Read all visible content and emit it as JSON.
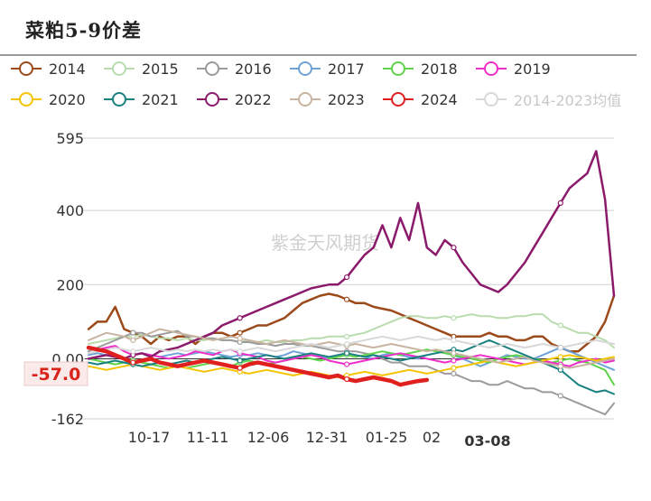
{
  "title": "菜粕5-9价差",
  "watermark": "紫金天风期货",
  "current_value_label": "-57.0",
  "current_date_label": "03-08",
  "chart_data": {
    "type": "line",
    "title": "菜粕5-9价差",
    "yticks": [
      595,
      400,
      200,
      0.0,
      -162
    ],
    "ytick_labels": [
      "595",
      "400",
      "200",
      "0.00",
      "-162"
    ],
    "ylim": [
      -162,
      595
    ],
    "xtick_labels": [
      "10-17",
      "11-11",
      "12-06",
      "12-31",
      "01-25",
      "02",
      "03-08"
    ],
    "x_count": 60,
    "highlight": {
      "series": "2024",
      "value": -57.0,
      "date": "03-08"
    },
    "series": [
      {
        "name": "2014",
        "color": "#9c4a1a",
        "width": 2.5,
        "values": [
          80,
          100,
          100,
          140,
          80,
          70,
          60,
          40,
          60,
          50,
          60,
          60,
          40,
          60,
          70,
          70,
          60,
          70,
          80,
          90,
          90,
          100,
          110,
          130,
          150,
          160,
          170,
          175,
          170,
          160,
          150,
          150,
          140,
          135,
          130,
          120,
          110,
          100,
          90,
          80,
          70,
          60,
          60,
          60,
          60,
          70,
          60,
          60,
          50,
          50,
          60,
          60,
          40,
          30,
          20,
          20,
          40,
          60,
          100,
          170
        ]
      },
      {
        "name": "2015",
        "color": "#b9dcae",
        "width": 2,
        "values": [
          40,
          45,
          50,
          55,
          60,
          60,
          65,
          60,
          55,
          55,
          50,
          55,
          50,
          50,
          55,
          50,
          50,
          45,
          50,
          45,
          50,
          45,
          45,
          50,
          50,
          55,
          55,
          60,
          60,
          60,
          65,
          70,
          80,
          90,
          100,
          110,
          115,
          115,
          110,
          110,
          115,
          110,
          115,
          120,
          115,
          115,
          110,
          110,
          115,
          115,
          120,
          120,
          100,
          90,
          80,
          70,
          70,
          60,
          50,
          30
        ]
      },
      {
        "name": "2016",
        "color": "#9b9b9b",
        "width": 2,
        "values": [
          20,
          30,
          40,
          50,
          60,
          70,
          70,
          60,
          65,
          70,
          75,
          60,
          60,
          55,
          55,
          50,
          50,
          45,
          45,
          40,
          40,
          35,
          40,
          40,
          35,
          35,
          30,
          25,
          20,
          20,
          20,
          15,
          10,
          0,
          -10,
          -10,
          -20,
          -20,
          -20,
          -30,
          -40,
          -40,
          -50,
          -60,
          -60,
          -70,
          -70,
          -60,
          -70,
          -80,
          -80,
          -90,
          -90,
          -100,
          -110,
          -120,
          -130,
          -140,
          -150,
          -120
        ]
      },
      {
        "name": "2017",
        "color": "#6fa3d8",
        "width": 2,
        "values": [
          10,
          15,
          10,
          5,
          0,
          10,
          15,
          10,
          5,
          10,
          15,
          10,
          15,
          20,
          15,
          10,
          5,
          10,
          10,
          15,
          10,
          5,
          10,
          20,
          15,
          10,
          5,
          0,
          10,
          15,
          10,
          5,
          0,
          10,
          15,
          10,
          5,
          0,
          10,
          15,
          20,
          10,
          0,
          -10,
          -20,
          -10,
          0,
          10,
          5,
          0,
          0,
          10,
          20,
          30,
          20,
          10,
          0,
          -10,
          -20,
          -30
        ]
      },
      {
        "name": "2018",
        "color": "#5fd34a",
        "width": 2,
        "values": [
          0,
          -5,
          -10,
          -15,
          -10,
          -5,
          -10,
          -15,
          -20,
          -25,
          -20,
          -25,
          -20,
          -15,
          -10,
          -15,
          -20,
          -10,
          -5,
          -10,
          -15,
          -10,
          -5,
          0,
          5,
          0,
          -5,
          0,
          5,
          10,
          5,
          10,
          15,
          20,
          15,
          10,
          15,
          20,
          25,
          20,
          15,
          10,
          5,
          0,
          -5,
          -10,
          0,
          5,
          10,
          5,
          0,
          -5,
          -10,
          -5,
          0,
          -5,
          -10,
          -20,
          -30,
          -70
        ]
      },
      {
        "name": "2019",
        "color": "#ee2ec8",
        "width": 2,
        "values": [
          30,
          25,
          30,
          35,
          20,
          10,
          15,
          10,
          5,
          0,
          5,
          10,
          20,
          15,
          10,
          20,
          25,
          15,
          10,
          5,
          -5,
          -10,
          -5,
          0,
          5,
          10,
          5,
          -5,
          -10,
          -15,
          -10,
          -5,
          0,
          5,
          10,
          15,
          10,
          5,
          0,
          -5,
          -10,
          -5,
          0,
          5,
          10,
          5,
          0,
          -5,
          -10,
          -15,
          -10,
          -5,
          -10,
          -15,
          -20,
          -10,
          -5,
          0,
          -10,
          -5
        ]
      },
      {
        "name": "2020",
        "color": "#f5c400",
        "width": 2,
        "values": [
          -20,
          -25,
          -30,
          -25,
          -20,
          -15,
          -20,
          -25,
          -30,
          -25,
          -20,
          -25,
          -30,
          -35,
          -30,
          -25,
          -30,
          -35,
          -40,
          -35,
          -30,
          -35,
          -40,
          -45,
          -40,
          -35,
          -40,
          -45,
          -50,
          -45,
          -40,
          -35,
          -40,
          -45,
          -40,
          -35,
          -30,
          -35,
          -40,
          -35,
          -30,
          -25,
          -20,
          -15,
          -10,
          -5,
          -10,
          -15,
          -20,
          -15,
          -10,
          -5,
          0,
          5,
          10,
          5,
          0,
          -5,
          0,
          5
        ]
      },
      {
        "name": "2021",
        "color": "#1a8080",
        "width": 2,
        "values": [
          -10,
          -15,
          -10,
          -5,
          -10,
          -15,
          -20,
          -15,
          -10,
          -15,
          -10,
          -5,
          -10,
          -5,
          0,
          5,
          0,
          -5,
          0,
          5,
          10,
          5,
          0,
          5,
          10,
          15,
          10,
          5,
          10,
          15,
          10,
          5,
          10,
          5,
          0,
          -5,
          0,
          5,
          10,
          15,
          20,
          25,
          20,
          30,
          40,
          50,
          40,
          30,
          20,
          10,
          0,
          -10,
          -20,
          -30,
          -50,
          -70,
          -80,
          -90,
          -85,
          -95
        ]
      },
      {
        "name": "2022",
        "color": "#8b1a6b",
        "width": 2.5,
        "values": [
          0,
          5,
          10,
          5,
          0,
          10,
          15,
          5,
          20,
          25,
          30,
          40,
          50,
          60,
          70,
          90,
          100,
          110,
          120,
          130,
          140,
          150,
          160,
          170,
          180,
          190,
          195,
          200,
          200,
          220,
          250,
          280,
          300,
          360,
          300,
          380,
          320,
          420,
          300,
          280,
          320,
          300,
          260,
          230,
          200,
          190,
          180,
          200,
          230,
          260,
          300,
          340,
          380,
          420,
          460,
          480,
          500,
          560,
          430,
          170
        ]
      },
      {
        "name": "2023",
        "color": "#c8b4a0",
        "width": 2,
        "values": [
          50,
          60,
          70,
          65,
          60,
          50,
          60,
          70,
          80,
          75,
          70,
          65,
          60,
          55,
          50,
          55,
          60,
          55,
          50,
          45,
          40,
          45,
          50,
          45,
          40,
          35,
          40,
          45,
          40,
          35,
          40,
          35,
          30,
          35,
          40,
          35,
          30,
          25,
          20,
          25,
          20,
          15,
          10,
          5,
          0,
          -5,
          -10,
          -5,
          0,
          5,
          -5,
          -10,
          -15,
          -20,
          -25,
          -20,
          -15,
          -10,
          -5,
          0
        ]
      },
      {
        "name": "2024",
        "color": "#e01f1f",
        "width": 4.5,
        "values": [
          30,
          25,
          20,
          10,
          0,
          -10,
          -5,
          0,
          -10,
          -15,
          -20,
          -15,
          -10,
          -5,
          -10,
          -15,
          -20,
          -25,
          -15,
          -10,
          -15,
          -20,
          -25,
          -30,
          -35,
          -40,
          -45,
          -50,
          -45,
          -55,
          -60,
          -55,
          -50,
          -55,
          -60,
          -70,
          -65,
          -60,
          -57
        ]
      },
      {
        "name": "2014-2023均值",
        "color": "#d8d8d8",
        "width": 2,
        "values": [
          15,
          20,
          25,
          30,
          25,
          20,
          25,
          30,
          25,
          20,
          25,
          20,
          25,
          20,
          25,
          20,
          25,
          20,
          25,
          30,
          25,
          20,
          25,
          30,
          35,
          40,
          35,
          30,
          35,
          40,
          45,
          50,
          55,
          60,
          55,
          50,
          55,
          60,
          55,
          50,
          55,
          50,
          45,
          40,
          35,
          30,
          35,
          40,
          35,
          30,
          35,
          40,
          35,
          30,
          35,
          40,
          45,
          50,
          45,
          40
        ]
      }
    ]
  }
}
